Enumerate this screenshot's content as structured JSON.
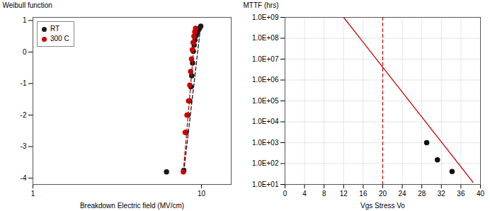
{
  "chart_data": [
    {
      "type": "scatter",
      "log": "x",
      "xlabel": "Breakdown Electric field (MV/cm)",
      "ylabel": "Weibull function",
      "xlim": [
        1,
        15
      ],
      "ylim": [
        -4.2,
        1.1
      ],
      "xticks": [
        1,
        10
      ],
      "yticks": [
        -4,
        -3,
        -2,
        -1,
        0,
        1
      ],
      "legend": "upper left",
      "series": [
        {
          "name": "RT",
          "type": "scatter",
          "color": "#1a1a1a",
          "x": [
            6.2,
            7.85,
            8.1,
            8.3,
            8.5,
            8.65,
            8.75,
            8.85,
            8.95,
            9.05,
            9.15,
            9.3,
            9.45,
            9.6,
            9.75,
            9.9
          ],
          "values": [
            -3.8,
            -3.75,
            -2.55,
            -2.0,
            -1.55,
            -1.1,
            -0.75,
            -0.35,
            0.02,
            0.22,
            0.38,
            0.52,
            0.62,
            0.7,
            0.76,
            0.82
          ]
        },
        {
          "name": "300 C",
          "type": "scatter",
          "color": "#cc0000",
          "x": [
            7.8,
            8.0,
            8.2,
            8.38,
            8.52,
            8.62,
            8.72,
            8.82,
            8.92,
            9.02,
            9.12,
            9.22
          ],
          "values": [
            -3.8,
            -2.55,
            -2.0,
            -1.55,
            -1.05,
            -0.62,
            -0.22,
            0.07,
            0.3,
            0.5,
            0.64,
            0.75
          ]
        },
        {
          "type": "line",
          "line_style": "dashed",
          "color": "#1a1a1a",
          "x": [
            7.85,
            9.9
          ],
          "values": [
            -3.8,
            0.85
          ]
        },
        {
          "type": "line",
          "line_style": "dashed",
          "color": "#cc0000",
          "x": [
            7.8,
            9.22
          ],
          "values": [
            -3.8,
            0.78
          ]
        }
      ]
    },
    {
      "type": "line",
      "log": "y",
      "grid": true,
      "xlabel": "Vgs Stress Vo",
      "ylabel": "MTTF (hrs)",
      "xlim": [
        0,
        40
      ],
      "ylim": [
        10,
        1000000000
      ],
      "xticks": [
        0,
        4,
        8,
        12,
        16,
        20,
        24,
        28,
        32,
        36,
        40
      ],
      "yticks": [
        {
          "value": 10,
          "label": "1.0E+01"
        },
        {
          "value": 100,
          "label": "1.0E+02"
        },
        {
          "value": 1000,
          "label": "1.0E+03"
        },
        {
          "value": 10000,
          "label": "1.0E+04"
        },
        {
          "value": 100000,
          "label": "1.0E+05"
        },
        {
          "value": 1000000,
          "label": "1.0E+06"
        },
        {
          "value": 10000000,
          "label": "1.0E+07"
        },
        {
          "value": 100000000,
          "label": "1.0E+08"
        },
        {
          "value": 1000000000,
          "label": "1.0E+09"
        }
      ],
      "series": [
        {
          "type": "line",
          "color": "#cc0000",
          "x": [
            12.0,
            38.5
          ],
          "values": [
            1000000000,
            12.58925412
          ]
        },
        {
          "type": "scatter",
          "color": "#111111",
          "x": [
            29.0,
            31.2,
            34.2
          ],
          "values": [
            1000,
            151.3561248,
            41.68693835
          ]
        }
      ],
      "vlines": [
        {
          "x": 20,
          "color": "#cc0000",
          "line_style": "dashed"
        }
      ]
    }
  ]
}
